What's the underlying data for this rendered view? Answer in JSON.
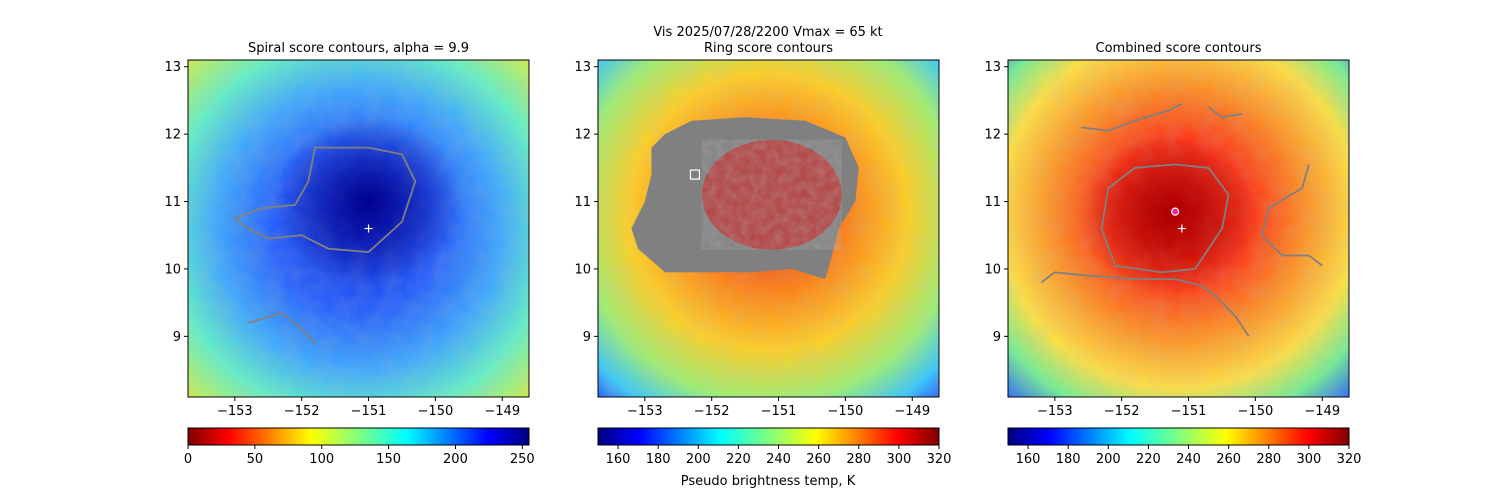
{
  "suptitle": {
    "line1": "Vis  2025/07/28/2200    Vmax = 65 kt"
  },
  "xlabel_shared": "Pseudo brightness temp, K",
  "chart_data": [
    {
      "type": "heatmap",
      "title": "Spiral score contours, alpha =  9.9",
      "xlim": [
        -153.7,
        -148.6
      ],
      "ylim": [
        8.1,
        13.1
      ],
      "xticks": [
        -153,
        -152,
        -151,
        -150,
        -149
      ],
      "xtick_labels": [
        "−153",
        "−152",
        "−151",
        "−150",
        "−149"
      ],
      "yticks": [
        9,
        10,
        11,
        12,
        13
      ],
      "ytick_labels": [
        "9",
        "10",
        "11",
        "12",
        "13"
      ],
      "colormap": "jet",
      "center": [
        -151.0,
        10.6
      ],
      "center_marker": "+",
      "contour_color": "#808080",
      "contours": [
        [
          [
            -151.5,
            11.8
          ],
          [
            -151.0,
            11.8
          ],
          [
            -150.5,
            11.7
          ],
          [
            -150.3,
            11.3
          ],
          [
            -150.5,
            10.7
          ],
          [
            -151.0,
            10.25
          ],
          [
            -151.6,
            10.3
          ],
          [
            -152.0,
            10.5
          ],
          [
            -152.5,
            10.45
          ],
          [
            -152.8,
            10.6
          ],
          [
            -153.0,
            10.75
          ],
          [
            -152.6,
            10.9
          ],
          [
            -152.1,
            10.95
          ],
          [
            -151.9,
            11.3
          ],
          [
            -151.8,
            11.8
          ],
          [
            -151.5,
            11.8
          ]
        ],
        [
          [
            -152.8,
            9.2
          ],
          [
            -152.3,
            9.35
          ],
          [
            -152.0,
            9.1
          ],
          [
            -151.8,
            8.9
          ]
        ]
      ],
      "colorbar": {
        "min": 0,
        "max": 255,
        "ticks": [
          0,
          50,
          100,
          150,
          200,
          250
        ],
        "tick_labels": [
          "0",
          "50",
          "100",
          "150",
          "200",
          "250"
        ],
        "reversed": false
      },
      "xlabel": "",
      "ylabel": ""
    },
    {
      "type": "heatmap",
      "title": "Ring score contours",
      "xlim": [
        -153.7,
        -148.6
      ],
      "ylim": [
        8.1,
        13.1
      ],
      "xticks": [
        -153,
        -152,
        -151,
        -150,
        -149
      ],
      "xtick_labels": [
        "−153",
        "−152",
        "−151",
        "−150",
        "−149"
      ],
      "yticks": [
        9,
        10,
        11,
        12,
        13
      ],
      "ytick_labels": [
        "9",
        "10",
        "11",
        "12",
        "13"
      ],
      "colormap": "jet_r",
      "ring_region_color": "#808080",
      "square_marker": [
        -152.25,
        11.4
      ],
      "colorbar": {
        "min": 150,
        "max": 320,
        "ticks": [
          160,
          180,
          200,
          220,
          240,
          260,
          280,
          300,
          320
        ],
        "tick_labels": [
          "160",
          "180",
          "200",
          "220",
          "240",
          "260",
          "280",
          "300",
          "320"
        ],
        "reversed": true
      },
      "xlabel": "",
      "ylabel": ""
    },
    {
      "type": "heatmap",
      "title": "Combined score contours",
      "xlim": [
        -153.7,
        -148.6
      ],
      "ylim": [
        8.1,
        13.1
      ],
      "xticks": [
        -153,
        -152,
        -151,
        -150,
        -149
      ],
      "xtick_labels": [
        "−153",
        "−152",
        "−151",
        "−150",
        "−149"
      ],
      "yticks": [
        9,
        10,
        11,
        12,
        13
      ],
      "ytick_labels": [
        "9",
        "10",
        "11",
        "12",
        "13"
      ],
      "colormap": "jet_r",
      "center": [
        -151.1,
        10.6
      ],
      "center_marker": "+",
      "circle_marker": [
        -151.2,
        10.85
      ],
      "contour_color": "#808080",
      "contours": [
        [
          [
            -151.2,
            11.55
          ],
          [
            -150.7,
            11.5
          ],
          [
            -150.4,
            11.1
          ],
          [
            -150.5,
            10.6
          ],
          [
            -150.9,
            10.0
          ],
          [
            -151.4,
            9.95
          ],
          [
            -152.1,
            10.05
          ],
          [
            -152.3,
            10.6
          ],
          [
            -152.2,
            11.2
          ],
          [
            -151.8,
            11.5
          ],
          [
            -151.2,
            11.55
          ]
        ],
        [
          [
            -152.6,
            12.1
          ],
          [
            -152.2,
            12.05
          ],
          [
            -151.8,
            12.2
          ],
          [
            -151.3,
            12.35
          ],
          [
            -151.1,
            12.45
          ]
        ],
        [
          [
            -150.7,
            12.4
          ],
          [
            -150.5,
            12.25
          ],
          [
            -150.2,
            12.3
          ]
        ],
        [
          [
            -153.2,
            9.8
          ],
          [
            -153.0,
            9.95
          ],
          [
            -152.5,
            9.9
          ],
          [
            -151.8,
            9.85
          ],
          [
            -151.2,
            9.85
          ],
          [
            -150.8,
            9.75
          ],
          [
            -150.6,
            9.6
          ],
          [
            -150.3,
            9.3
          ],
          [
            -150.1,
            9.0
          ]
        ],
        [
          [
            -149.2,
            11.55
          ],
          [
            -149.3,
            11.2
          ],
          [
            -149.8,
            10.9
          ],
          [
            -149.9,
            10.5
          ],
          [
            -149.6,
            10.2
          ],
          [
            -149.2,
            10.2
          ],
          [
            -149.0,
            10.05
          ]
        ]
      ],
      "colorbar": {
        "min": 150,
        "max": 320,
        "ticks": [
          160,
          180,
          200,
          220,
          240,
          260,
          280,
          300,
          320
        ],
        "tick_labels": [
          "160",
          "180",
          "200",
          "220",
          "240",
          "260",
          "280",
          "300",
          "320"
        ],
        "reversed": true
      },
      "xlabel": "",
      "ylabel": ""
    }
  ]
}
